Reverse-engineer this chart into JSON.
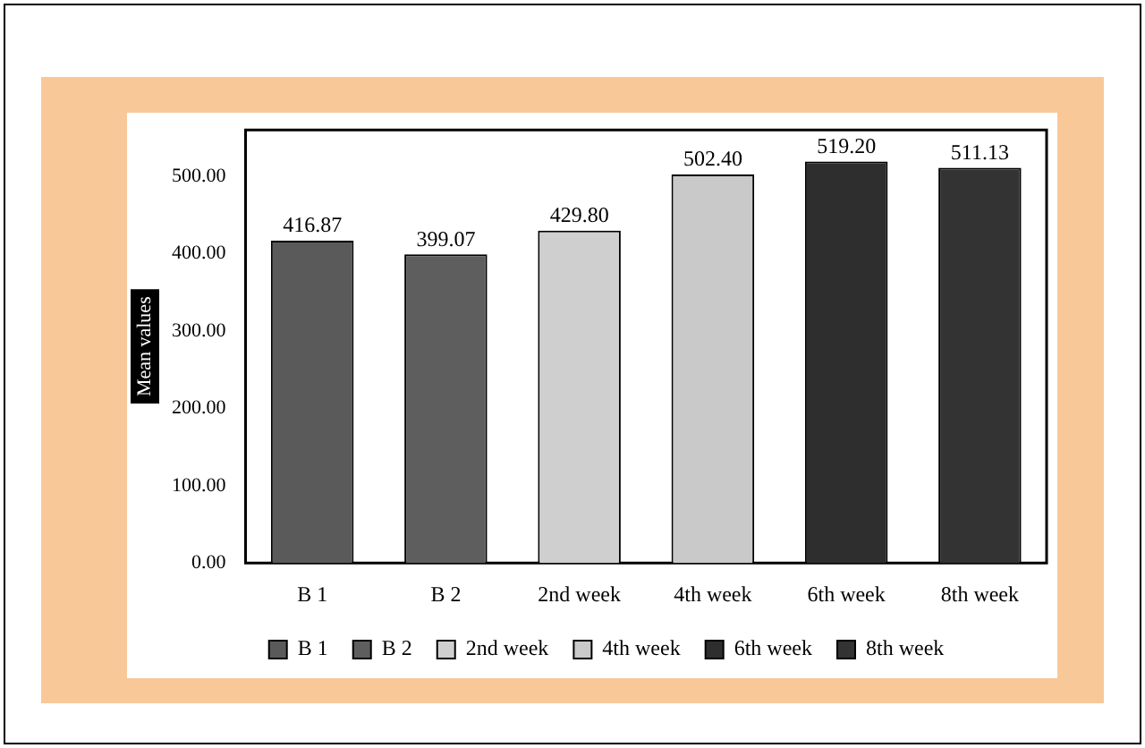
{
  "chart_data": {
    "type": "bar",
    "ylabel": "Mean values",
    "categories": [
      "B 1",
      "B 2",
      "2nd week",
      "4th week",
      "6th week",
      "8th week"
    ],
    "series": [
      {
        "name": "B 1",
        "color": "#5a5a5a",
        "values": [
          416.87,
          null,
          null,
          null,
          null,
          null
        ],
        "value_labels": [
          "416.87",
          null,
          null,
          null,
          null,
          null
        ]
      },
      {
        "name": "B 2",
        "color": "#5e5e5e",
        "values": [
          null,
          399.07,
          null,
          null,
          null,
          null
        ],
        "value_labels": [
          null,
          "399.07",
          null,
          null,
          null,
          null
        ]
      },
      {
        "name": "2nd week",
        "color": "#cfcfcf",
        "values": [
          null,
          null,
          429.8,
          null,
          null,
          null
        ],
        "value_labels": [
          null,
          null,
          "429.80",
          null,
          null,
          null
        ]
      },
      {
        "name": "4th week",
        "color": "#c9c9c9",
        "values": [
          null,
          null,
          null,
          502.4,
          null,
          null
        ],
        "value_labels": [
          null,
          null,
          null,
          "502.40",
          null,
          null
        ]
      },
      {
        "name": "6th week",
        "color": "#2e2e2e",
        "values": [
          null,
          null,
          null,
          null,
          519.2,
          null
        ],
        "value_labels": [
          null,
          null,
          null,
          null,
          "519.20",
          null
        ]
      },
      {
        "name": "8th week",
        "color": "#333333",
        "values": [
          null,
          null,
          null,
          null,
          null,
          511.13
        ],
        "value_labels": [
          null,
          null,
          null,
          null,
          null,
          "511.13"
        ]
      }
    ],
    "ylim": [
      0,
      560
    ],
    "yticks": [
      {
        "value": 0,
        "label": "0.00"
      },
      {
        "value": 100,
        "label": "100.00"
      },
      {
        "value": 200,
        "label": "200.00"
      },
      {
        "value": 300,
        "label": "300.00"
      },
      {
        "value": 400,
        "label": "400.00"
      },
      {
        "value": 500,
        "label": "500.00"
      }
    ],
    "grid": false,
    "legend": "bottom"
  }
}
